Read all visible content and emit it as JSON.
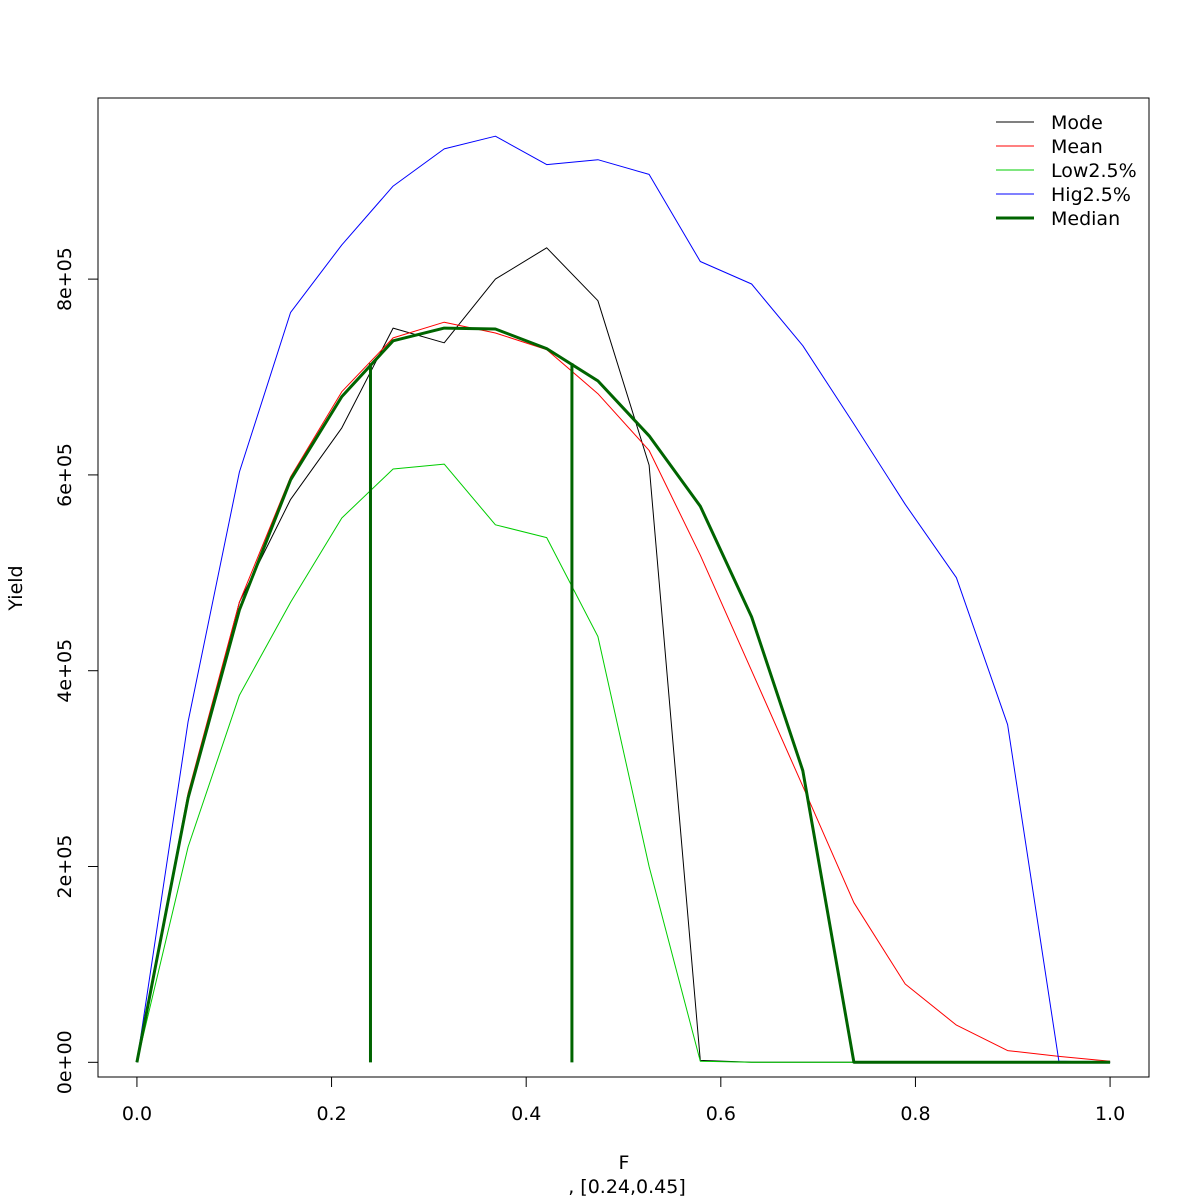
{
  "chart_data": {
    "type": "line",
    "title": "",
    "xlabel": "F",
    "sublabel": ", [0.24,0.45]",
    "ylabel": "Yield",
    "xlim": [
      -0.04,
      1.04
    ],
    "ylim": [
      -15000,
      985000
    ],
    "x_ticks": [
      0.0,
      0.2,
      0.4,
      0.6,
      0.8,
      1.0
    ],
    "x_tick_labels": [
      "0.0",
      "0.2",
      "0.4",
      "0.6",
      "0.8",
      "1.0"
    ],
    "y_ticks": [
      0,
      200000,
      400000,
      600000,
      800000
    ],
    "y_tick_labels": [
      "0e+00",
      "2e+05",
      "4e+05",
      "6e+05",
      "8e+05"
    ],
    "grid": false,
    "legend_position": "top-right",
    "x": [
      0.0,
      0.0526,
      0.1053,
      0.1579,
      0.2105,
      0.2632,
      0.3158,
      0.3684,
      0.4211,
      0.4737,
      0.5263,
      0.5789,
      0.6316,
      0.6842,
      0.7368,
      0.7895,
      0.8421,
      0.8947,
      0.9474,
      1.0
    ],
    "series": [
      {
        "name": "Mode",
        "color": "#000000",
        "width": 1,
        "values": [
          0,
          270000,
          470000,
          575000,
          648000,
          750000,
          735000,
          800000,
          832000,
          778000,
          610000,
          2000,
          0,
          0,
          0,
          0,
          0,
          0,
          0,
          0
        ]
      },
      {
        "name": "Mean",
        "color": "#ff0000",
        "width": 1,
        "values": [
          0,
          275000,
          470000,
          598000,
          685000,
          740000,
          756000,
          745000,
          728000,
          683000,
          625000,
          518000,
          400000,
          282000,
          163000,
          80000,
          38000,
          12000,
          6000,
          1000
        ]
      },
      {
        "name": "Low2.5%",
        "color": "#00cd00",
        "width": 1,
        "values": [
          0,
          220000,
          375000,
          470000,
          556000,
          606000,
          611000,
          549000,
          536000,
          435000,
          200000,
          1000,
          0,
          0,
          0,
          0,
          0,
          0,
          0,
          0
        ]
      },
      {
        "name": "Hig2.5%",
        "color": "#0000ff",
        "width": 1,
        "values": [
          0,
          348000,
          603000,
          766000,
          835000,
          895000,
          933000,
          946000,
          917000,
          922000,
          907000,
          818000,
          795000,
          732000,
          652000,
          570000,
          495000,
          345000,
          1000,
          0
        ]
      },
      {
        "name": "Median",
        "color": "#006400",
        "width": 3,
        "values": [
          0,
          270000,
          462000,
          595000,
          680000,
          737000,
          750000,
          749000,
          729000,
          696000,
          640000,
          568000,
          455000,
          298000,
          0,
          0,
          0,
          0,
          0,
          0
        ]
      }
    ],
    "vertical_lines": [
      {
        "x": 0.24,
        "y_from": 0,
        "y_to": 714000,
        "color": "#006400"
      },
      {
        "x": 0.447,
        "y_from": 0,
        "y_to": 714000,
        "color": "#006400"
      }
    ]
  }
}
